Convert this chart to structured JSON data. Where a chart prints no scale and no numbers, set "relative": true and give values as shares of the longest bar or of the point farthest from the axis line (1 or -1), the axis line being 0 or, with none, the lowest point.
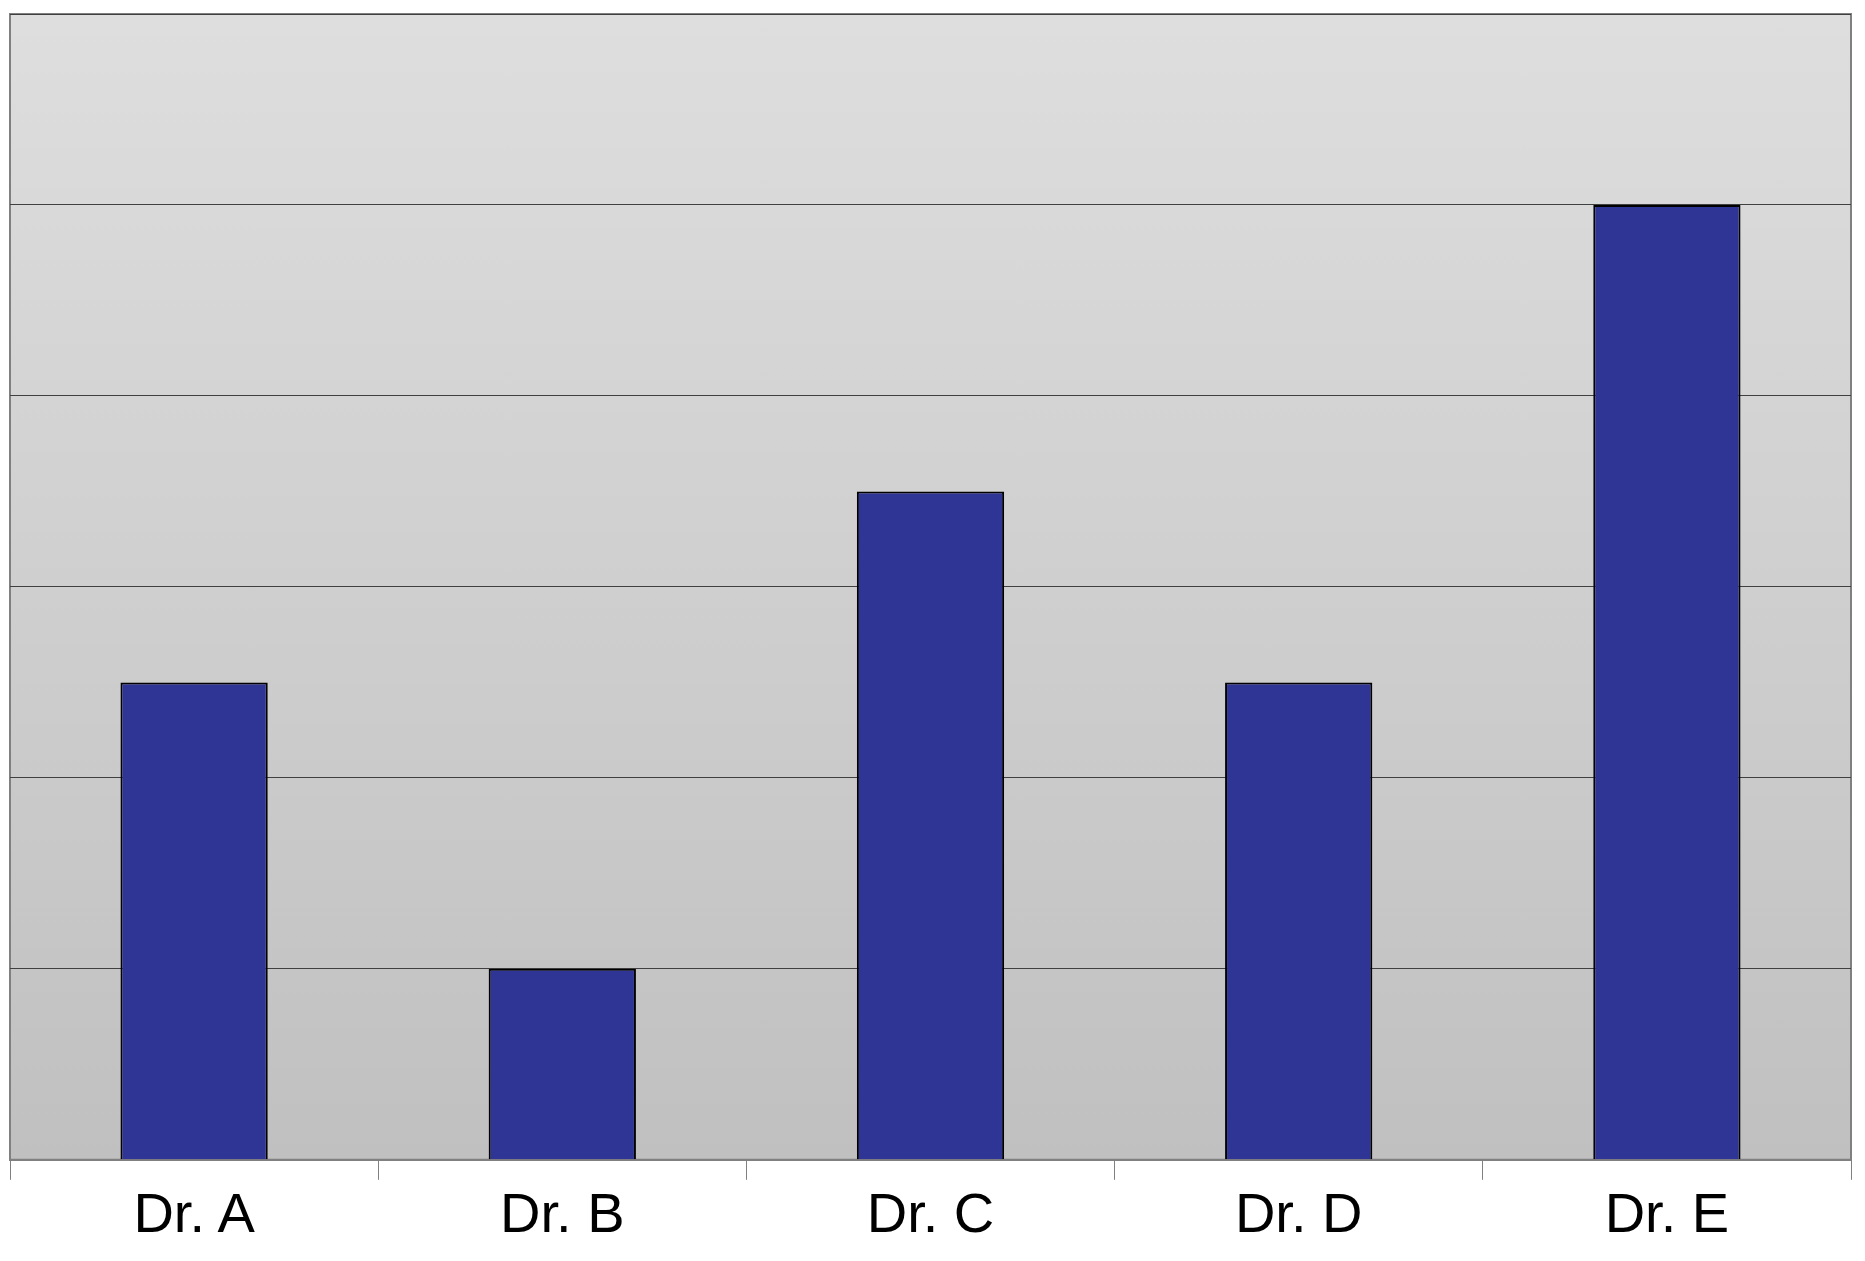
{
  "chart_data": {
    "type": "bar",
    "relative": true,
    "categories": [
      "Dr. A",
      "Dr. B",
      "Dr. C",
      "Dr. D",
      "Dr. E"
    ],
    "values": [
      0.5,
      0.2,
      0.7,
      0.5,
      1
    ],
    "color": "#2e3594",
    "grid": "y"
  }
}
